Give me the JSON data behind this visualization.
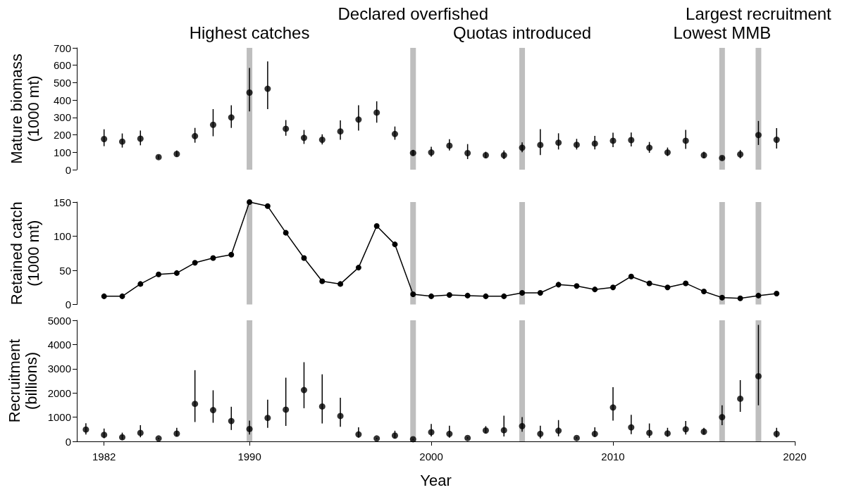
{
  "chart_data": [
    {
      "type": "scatter",
      "ylabel": "Mature biomass\n(1000 mt)",
      "marker": "circle",
      "tick_labels": "y",
      "xlim": [
        1980.5,
        2020
      ],
      "xticks": [
        1982,
        1990,
        2000,
        2010,
        2020
      ],
      "ylim": [
        0,
        700
      ],
      "yticks": [
        0,
        100,
        200,
        300,
        400,
        500,
        600,
        700
      ],
      "x": [
        1982,
        1983,
        1984,
        1985,
        1986,
        1987,
        1988,
        1989,
        1990,
        1991,
        1992,
        1993,
        1994,
        1995,
        1996,
        1997,
        1998,
        1999,
        2000,
        2001,
        2002,
        2003,
        2004,
        2005,
        2006,
        2007,
        2008,
        2009,
        2010,
        2011,
        2012,
        2013,
        2014,
        2015,
        2016,
        2017,
        2018,
        2019
      ],
      "series": [
        {
          "color": "#000000",
          "values": [
            176,
            161,
            178,
            72,
            90,
            193,
            258,
            300,
            443,
            465,
            235,
            183,
            172,
            220,
            288,
            328,
            205,
            96,
            99,
            138,
            95,
            83,
            83,
            126,
            142,
            155,
            143,
            150,
            166,
            170,
            126,
            99,
            166,
            83,
            67,
            88,
            199,
            172
          ],
          "errors": [
            [
              135,
              232
            ],
            [
              127,
              208
            ],
            [
              140,
              225
            ],
            [
              62,
              82
            ],
            [
              75,
              110
            ],
            [
              155,
              240
            ],
            [
              192,
              348
            ],
            [
              240,
              370
            ],
            [
              335,
              585
            ],
            [
              348,
              622
            ],
            [
              195,
              285
            ],
            [
              148,
              228
            ],
            [
              145,
              203
            ],
            [
              172,
              283
            ],
            [
              225,
              370
            ],
            [
              270,
              393
            ],
            [
              172,
              248
            ],
            [
              80,
              113
            ],
            [
              75,
              131
            ],
            [
              110,
              175
            ],
            [
              61,
              147
            ],
            [
              65,
              103
            ],
            [
              61,
              110
            ],
            [
              100,
              157
            ],
            [
              84,
              233
            ],
            [
              116,
              209
            ],
            [
              116,
              177
            ],
            [
              116,
              194
            ],
            [
              129,
              212
            ],
            [
              134,
              213
            ],
            [
              97,
              159
            ],
            [
              78,
              127
            ],
            [
              119,
              229
            ],
            [
              65,
              103
            ],
            [
              58,
              76
            ],
            [
              65,
              113
            ],
            [
              142,
              280
            ],
            [
              121,
              239
            ]
          ]
        }
      ],
      "ref_lines": [
        {
          "axis": "x",
          "value": 1990,
          "label": "Highest catches",
          "color": "#bebebe"
        },
        {
          "axis": "x",
          "value": 1999,
          "label": "Declared overfished",
          "color": "#bebebe"
        },
        {
          "axis": "x",
          "value": 2005,
          "label": "Quotas introduced",
          "color": "#bebebe"
        },
        {
          "axis": "x",
          "value": 2016,
          "label": "Lowest MMB",
          "color": "#bebebe"
        },
        {
          "axis": "x",
          "value": 2018,
          "label": "Largest recruitment",
          "color": "#bebebe"
        }
      ]
    },
    {
      "type": "line",
      "ylabel": "Retained catch\n(1000 mt)",
      "marker": "circle",
      "line_style": "solid",
      "tick_labels": "y",
      "xlim": [
        1980.5,
        2020
      ],
      "xticks": [
        1982,
        1990,
        2000,
        2010,
        2020
      ],
      "ylim": [
        0,
        150
      ],
      "yticks": [
        0,
        50,
        100,
        150
      ],
      "x": [
        1982,
        1983,
        1984,
        1985,
        1986,
        1987,
        1988,
        1989,
        1990,
        1991,
        1992,
        1993,
        1994,
        1995,
        1996,
        1997,
        1998,
        1999,
        2000,
        2001,
        2002,
        2003,
        2004,
        2005,
        2006,
        2007,
        2008,
        2009,
        2010,
        2011,
        2012,
        2013,
        2014,
        2015,
        2016,
        2017,
        2018,
        2019
      ],
      "series": [
        {
          "color": "#000000",
          "values": [
            12,
            12,
            30,
            44,
            46,
            61,
            68,
            73,
            150,
            144,
            105,
            68,
            34,
            30,
            54,
            115,
            88,
            15,
            12,
            14,
            13,
            12,
            12,
            17,
            17,
            29,
            27,
            22,
            25,
            41,
            31,
            25,
            31,
            19,
            10,
            9,
            13,
            16
          ]
        }
      ],
      "ref_lines": [
        {
          "axis": "x",
          "value": 1990,
          "color": "#bebebe"
        },
        {
          "axis": "x",
          "value": 1999,
          "color": "#bebebe"
        },
        {
          "axis": "x",
          "value": 2005,
          "color": "#bebebe"
        },
        {
          "axis": "x",
          "value": 2016,
          "color": "#bebebe"
        },
        {
          "axis": "x",
          "value": 2018,
          "color": "#bebebe"
        }
      ]
    },
    {
      "type": "scatter",
      "ylabel": "Recruitment\n(billions)",
      "xlabel": "Year",
      "marker": "circle",
      "xlim": [
        1980.5,
        2020
      ],
      "xticks": [
        1982,
        1990,
        2000,
        2010,
        2020
      ],
      "ylim": [
        0,
        5000
      ],
      "yticks": [
        0,
        1000,
        2000,
        3000,
        4000,
        5000
      ],
      "x": [
        1981,
        1982,
        1983,
        1984,
        1985,
        1986,
        1987,
        1988,
        1989,
        1990,
        1991,
        1992,
        1993,
        1994,
        1995,
        1996,
        1997,
        1998,
        1999,
        2000,
        2001,
        2002,
        2003,
        2004,
        2005,
        2006,
        2007,
        2008,
        2009,
        2010,
        2011,
        2012,
        2013,
        2014,
        2015,
        2016,
        2017,
        2018,
        2019
      ],
      "series": [
        {
          "color": "#000000",
          "values": [
            490,
            270,
            170,
            350,
            120,
            320,
            1550,
            1290,
            840,
            510,
            970,
            1310,
            2120,
            1440,
            1050,
            290,
            120,
            240,
            90,
            380,
            310,
            140,
            450,
            460,
            630,
            310,
            440,
            140,
            310,
            1400,
            580,
            350,
            330,
            500,
            400,
            1000,
            1760,
            2690,
            310
          ],
          "errors": [
            [
              280,
              750
            ],
            [
              130,
              530
            ],
            [
              80,
              360
            ],
            [
              170,
              670
            ],
            [
              90,
              150
            ],
            [
              200,
              560
            ],
            [
              800,
              2940
            ],
            [
              770,
              2110
            ],
            [
              470,
              1430
            ],
            [
              280,
              860
            ],
            [
              560,
              1720
            ],
            [
              640,
              2630
            ],
            [
              1370,
              3270
            ],
            [
              740,
              2770
            ],
            [
              600,
              1800
            ],
            [
              150,
              580
            ],
            [
              90,
              150
            ],
            [
              120,
              440
            ],
            [
              60,
              110
            ],
            [
              200,
              720
            ],
            [
              150,
              650
            ],
            [
              110,
              170
            ],
            [
              330,
              630
            ],
            [
              200,
              1060
            ],
            [
              400,
              1000
            ],
            [
              120,
              650
            ],
            [
              210,
              880
            ],
            [
              110,
              170
            ],
            [
              180,
              580
            ],
            [
              860,
              2240
            ],
            [
              300,
              1100
            ],
            [
              150,
              740
            ],
            [
              190,
              560
            ],
            [
              280,
              840
            ],
            [
              280,
              560
            ],
            [
              670,
              1490
            ],
            [
              1220,
              2530
            ],
            [
              1490,
              4810
            ],
            [
              160,
              560
            ]
          ]
        }
      ],
      "ref_lines": [
        {
          "axis": "x",
          "value": 1990,
          "color": "#bebebe"
        },
        {
          "axis": "x",
          "value": 1999,
          "color": "#bebebe"
        },
        {
          "axis": "x",
          "value": 2005,
          "color": "#bebebe"
        },
        {
          "axis": "x",
          "value": 2016,
          "color": "#bebebe"
        },
        {
          "axis": "x",
          "value": 2018,
          "color": "#bebebe"
        }
      ]
    }
  ]
}
